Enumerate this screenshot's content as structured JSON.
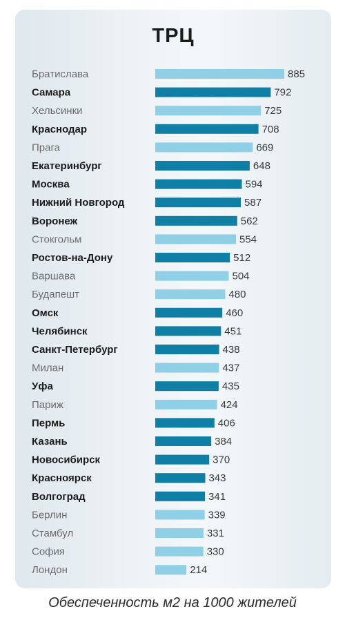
{
  "title": "ТРЦ",
  "footnote": "Обеспеченность м2 на 1000 жителей",
  "colors": {
    "russian": "#0f7fa6",
    "foreign": "#8fd0e6",
    "label_russian": "#1b1b1b",
    "label_foreign": "#6b6b6b"
  },
  "chart_data": {
    "type": "bar",
    "orientation": "horizontal",
    "title": "ТРЦ",
    "xlabel": "Обеспеченность м2 на 1000 жителей",
    "xlim": [
      0,
      885
    ],
    "grid": false,
    "categories": [
      "Братислава",
      "Самара",
      "Хельсинки",
      "Краснодар",
      "Прага",
      "Екатеринбург",
      "Москва",
      "Нижний Новгород",
      "Воронеж",
      "Стокгольм",
      "Ростов-на-Дону",
      "Варшава",
      "Будапешт",
      "Омск",
      "Челябинск",
      "Санкт-Петербург",
      "Милан",
      "Уфа",
      "Париж",
      "Пермь",
      "Казань",
      "Новосибирск",
      "Красноярск",
      "Волгоград",
      "Берлин",
      "Стамбул",
      "София",
      "Лондон"
    ],
    "values": [
      885,
      792,
      725,
      708,
      669,
      648,
      594,
      587,
      562,
      554,
      512,
      504,
      480,
      460,
      451,
      438,
      437,
      435,
      424,
      406,
      384,
      370,
      343,
      341,
      339,
      331,
      330,
      214
    ],
    "highlighted": [
      false,
      true,
      false,
      true,
      false,
      true,
      true,
      true,
      true,
      false,
      true,
      false,
      false,
      true,
      true,
      true,
      false,
      true,
      false,
      true,
      true,
      true,
      true,
      true,
      false,
      false,
      false,
      false
    ]
  }
}
